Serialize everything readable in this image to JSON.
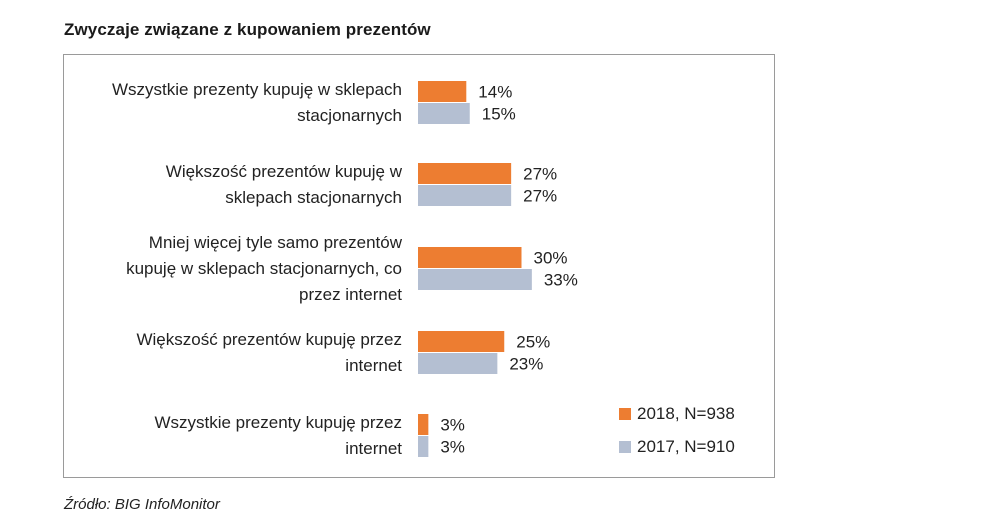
{
  "chart_data": {
    "type": "bar",
    "orientation": "horizontal",
    "title": "Zwyczaje związane z kupowaniem prezentów",
    "categories": [
      "Wszystkie prezenty kupuję w sklepach stacjonarnych",
      "Większość prezentów kupuję w sklepach stacjonarnych",
      "Mniej więcej tyle samo prezentów kupuję w sklepach stacjonarnych, co przez internet",
      "Większość prezentów kupuję przez internet",
      "Wszystkie prezenty kupuję przez internet"
    ],
    "category_lines": [
      [
        "Wszystkie prezenty kupuję w sklepach",
        "stacjonarnych"
      ],
      [
        "Większość prezentów kupuję w",
        "sklepach stacjonarnych"
      ],
      [
        "Mniej więcej tyle samo prezentów",
        "kupuję w sklepach stacjonarnych, co",
        "przez internet"
      ],
      [
        "Większość prezentów kupuję przez",
        "internet"
      ],
      [
        "Wszystkie prezenty kupuję przez",
        "internet"
      ]
    ],
    "series": [
      {
        "name": "2018, N=938",
        "color": "#ED7D31",
        "values": [
          14,
          27,
          30,
          25,
          3
        ]
      },
      {
        "name": "2017, N=910",
        "color": "#B4BFD2",
        "values": [
          15,
          27,
          33,
          23,
          3
        ]
      }
    ],
    "value_suffix": "%",
    "legend_position": "bottom-right",
    "xlim": [
      0,
      100
    ],
    "grid": false
  },
  "source": "Źródło: BIG InfoMonitor"
}
